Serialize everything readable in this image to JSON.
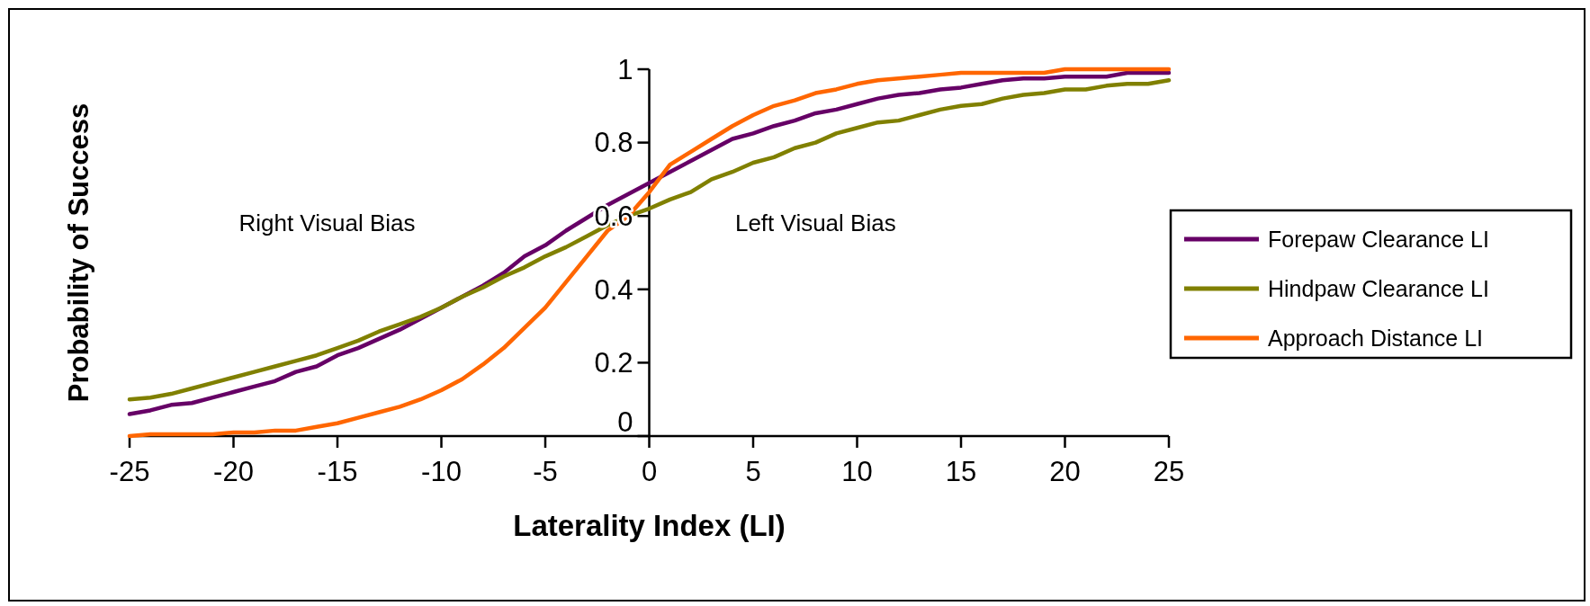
{
  "chart_data": {
    "type": "line",
    "xlabel": "Laterality Index (LI)",
    "ylabel": "Probability of Success",
    "x": [
      -25,
      -24,
      -23,
      -22,
      -21,
      -20,
      -19,
      -18,
      -17,
      -16,
      -15,
      -14,
      -13,
      -12,
      -11,
      -10,
      -9,
      -8,
      -7,
      -6,
      -5,
      -4,
      -3,
      -2,
      -1,
      0,
      1,
      2,
      3,
      4,
      5,
      6,
      7,
      8,
      9,
      10,
      11,
      12,
      13,
      14,
      15,
      16,
      17,
      18,
      19,
      20,
      21,
      22,
      23,
      24,
      25
    ],
    "series": [
      {
        "name": "Forepaw  Clearance LI",
        "color": "#660066",
        "values": [
          0.06,
          0.07,
          0.085,
          0.09,
          0.105,
          0.12,
          0.135,
          0.15,
          0.175,
          0.19,
          0.22,
          0.24,
          0.265,
          0.29,
          0.32,
          0.35,
          0.38,
          0.41,
          0.445,
          0.49,
          0.52,
          0.56,
          0.595,
          0.63,
          0.66,
          0.69,
          0.72,
          0.75,
          0.78,
          0.81,
          0.825,
          0.845,
          0.86,
          0.88,
          0.89,
          0.905,
          0.92,
          0.93,
          0.935,
          0.945,
          0.95,
          0.96,
          0.97,
          0.975,
          0.975,
          0.98,
          0.98,
          0.98,
          0.99,
          0.99,
          0.99
        ]
      },
      {
        "name": "Hindpaw  Clearance LI",
        "color": "#808000",
        "values": [
          0.1,
          0.105,
          0.115,
          0.13,
          0.145,
          0.16,
          0.175,
          0.19,
          0.205,
          0.22,
          0.24,
          0.26,
          0.285,
          0.305,
          0.325,
          0.35,
          0.38,
          0.405,
          0.435,
          0.46,
          0.49,
          0.515,
          0.545,
          0.575,
          0.6,
          0.62,
          0.645,
          0.665,
          0.7,
          0.72,
          0.745,
          0.76,
          0.785,
          0.8,
          0.825,
          0.84,
          0.855,
          0.86,
          0.875,
          0.89,
          0.9,
          0.905,
          0.92,
          0.93,
          0.935,
          0.945,
          0.945,
          0.955,
          0.96,
          0.96,
          0.97
        ]
      },
      {
        "name": "Approach Distance LI",
        "color": "#ff6600",
        "values": [
          0,
          0.005,
          0.005,
          0.005,
          0.005,
          0.01,
          0.01,
          0.015,
          0.015,
          0.025,
          0.035,
          0.05,
          0.065,
          0.08,
          0.1,
          0.125,
          0.155,
          0.195,
          0.24,
          0.295,
          0.35,
          0.42,
          0.49,
          0.56,
          0.6,
          0.665,
          0.74,
          0.775,
          0.81,
          0.845,
          0.875,
          0.9,
          0.915,
          0.935,
          0.945,
          0.96,
          0.97,
          0.975,
          0.98,
          0.985,
          0.99,
          0.99,
          0.99,
          0.99,
          0.99,
          1,
          1,
          1,
          1,
          1,
          1
        ]
      }
    ],
    "xlim": [
      -25,
      25
    ],
    "xticks": [
      -25,
      -20,
      -15,
      -10,
      -5,
      0,
      5,
      10,
      15,
      20,
      25
    ],
    "ylim": [
      0,
      1
    ],
    "yticks": [
      0,
      0.2,
      0.4,
      0.6,
      0.8,
      1
    ],
    "grid": false,
    "legend": "right",
    "marker": "none",
    "line_style": "solid",
    "annotations": [
      "Right Visual Bias",
      "Left Visual Bias"
    ]
  }
}
